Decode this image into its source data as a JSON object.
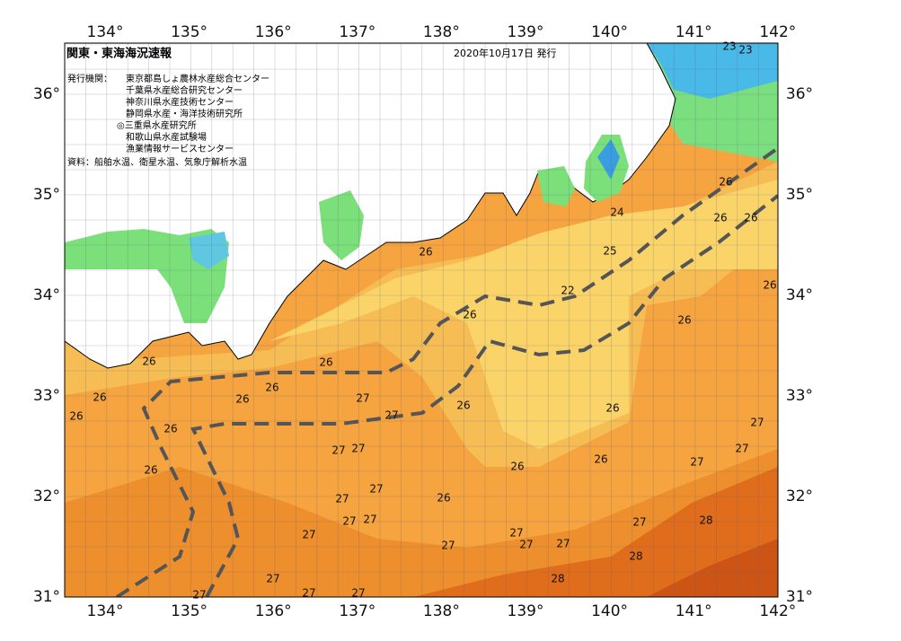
{
  "header": {
    "title": "関東・東海海況速報",
    "date": "2020年10月17日 発行",
    "issuer_label": "発行機関：",
    "issuers": [
      "東京都島しょ農林水産総合センター",
      "千葉県水産総合研究センター",
      "神奈川県水産技術センター",
      "静岡県水産・海洋技術研究所",
      "◎三重県水産研究所",
      "和歌山県水産試験場",
      "漁業情報サービスセンター"
    ],
    "source": "資料：船舶水温、衛星水温、気象庁解析水温"
  },
  "map": {
    "lon_labels": [
      "134°",
      "135°",
      "136°",
      "137°",
      "138°",
      "139°",
      "140°",
      "141°",
      "142°"
    ],
    "lat_labels": [
      "31°",
      "32°",
      "33°",
      "34°",
      "35°",
      "36°"
    ],
    "contour_labels": [
      23,
      23,
      26,
      26,
      26,
      24,
      25,
      26,
      22,
      26,
      26,
      26,
      26,
      26,
      26,
      26,
      26,
      27,
      26,
      26,
      26,
      27,
      26,
      27,
      27,
      27,
      27,
      26,
      26,
      27,
      26,
      27,
      26,
      27,
      27,
      27,
      27,
      28,
      27,
      27,
      27,
      27,
      27,
      28,
      27,
      28,
      27,
      27,
      27
    ]
  }
}
